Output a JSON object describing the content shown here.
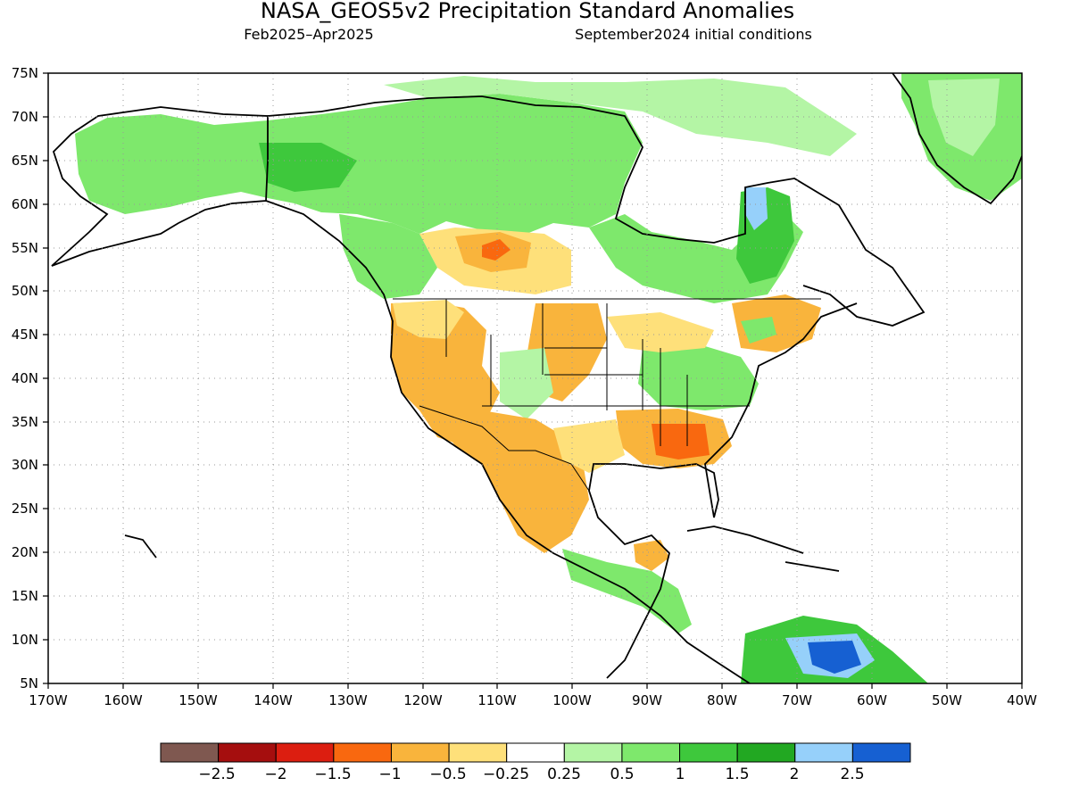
{
  "title": "NASA_GEOS5v2 Precipitation Standard Anomalies",
  "subtitle_left": "Feb2025–Apr2025",
  "subtitle_right": "September2024 initial conditions",
  "lat_labels": [
    "75N",
    "70N",
    "65N",
    "60N",
    "55N",
    "50N",
    "45N",
    "40N",
    "35N",
    "30N",
    "25N",
    "20N",
    "15N",
    "10N",
    "5N"
  ],
  "lon_labels": [
    "170W",
    "160W",
    "150W",
    "140W",
    "130W",
    "120W",
    "110W",
    "100W",
    "90W",
    "80W",
    "70W",
    "60W",
    "50W",
    "40W"
  ],
  "legend": {
    "colors": [
      "#7f5850",
      "#a50e0e",
      "#dc1e10",
      "#f9680f",
      "#f9b43c",
      "#fee07a",
      "#ffffff",
      "#b4f5a5",
      "#7ee86c",
      "#3ec83c",
      "#22a822",
      "#96d0fa",
      "#1660d2"
    ],
    "tick_labels": [
      "−2.5",
      "−2",
      "−1.5",
      "−1",
      "−0.5",
      "−0.25",
      "0.25",
      "0.5",
      "1",
      "1.5",
      "2",
      "2.5"
    ]
  },
  "anomaly_colors": {
    "brown": "#7f5850",
    "dark_red": "#a50e0e",
    "red": "#dc1e10",
    "dark_orange": "#f9680f",
    "orange": "#f9b43c",
    "yellow": "#fee07a",
    "neutral": "#ffffff",
    "light_green": "#b4f5a5",
    "green": "#7ee86c",
    "mid_green": "#3ec83c",
    "dark_green": "#22a822",
    "light_blue": "#96d0fa",
    "blue": "#1660d2"
  }
}
